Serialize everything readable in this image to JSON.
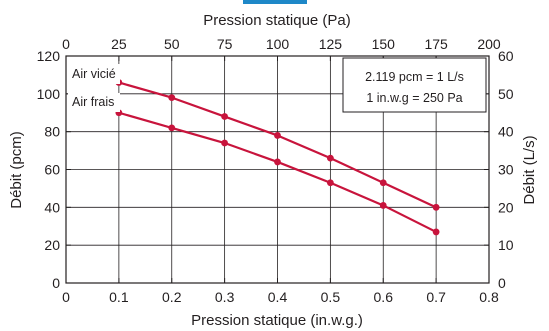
{
  "colors": {
    "series": "#c8143c",
    "ink": "#231f20",
    "accent_top": "#1e88c8"
  },
  "chart_data": {
    "type": "line",
    "grid": true,
    "x_bottom": {
      "label": "Pression statique (in.w.g.)",
      "min": 0,
      "max": 0.8,
      "ticks": [
        "0",
        "0.1",
        "0.2",
        "0.3",
        "0.4",
        "0.5",
        "0.6",
        "0.7",
        "0.8"
      ]
    },
    "x_top": {
      "label": "Pression statique (Pa)",
      "min": 0,
      "max": 200,
      "ticks": [
        "0",
        "25",
        "50",
        "75",
        "100",
        "125",
        "150",
        "175",
        "200"
      ]
    },
    "y_left": {
      "label": "Débit (pcm)",
      "min": 0,
      "max": 120,
      "ticks": [
        "0",
        "20",
        "40",
        "60",
        "80",
        "100",
        "120"
      ]
    },
    "y_right": {
      "label": "Débit (L/s)",
      "min": 0,
      "max": 60,
      "ticks": [
        "0",
        "10",
        "20",
        "30",
        "40",
        "50",
        "60"
      ]
    },
    "series": [
      {
        "name": "Air vicié",
        "x": [
          0.1,
          0.2,
          0.3,
          0.4,
          0.5,
          0.6,
          0.7
        ],
        "y": [
          106,
          98,
          88,
          78,
          66,
          53,
          40
        ]
      },
      {
        "name": "Air frais",
        "x": [
          0.1,
          0.2,
          0.3,
          0.4,
          0.5,
          0.6,
          0.7
        ],
        "y": [
          90,
          82,
          74,
          64,
          53,
          41,
          27
        ]
      }
    ],
    "annotation": {
      "lines": [
        "2.119 pcm = 1 L/s",
        "1 in.w.g = 250 Pa"
      ]
    }
  }
}
